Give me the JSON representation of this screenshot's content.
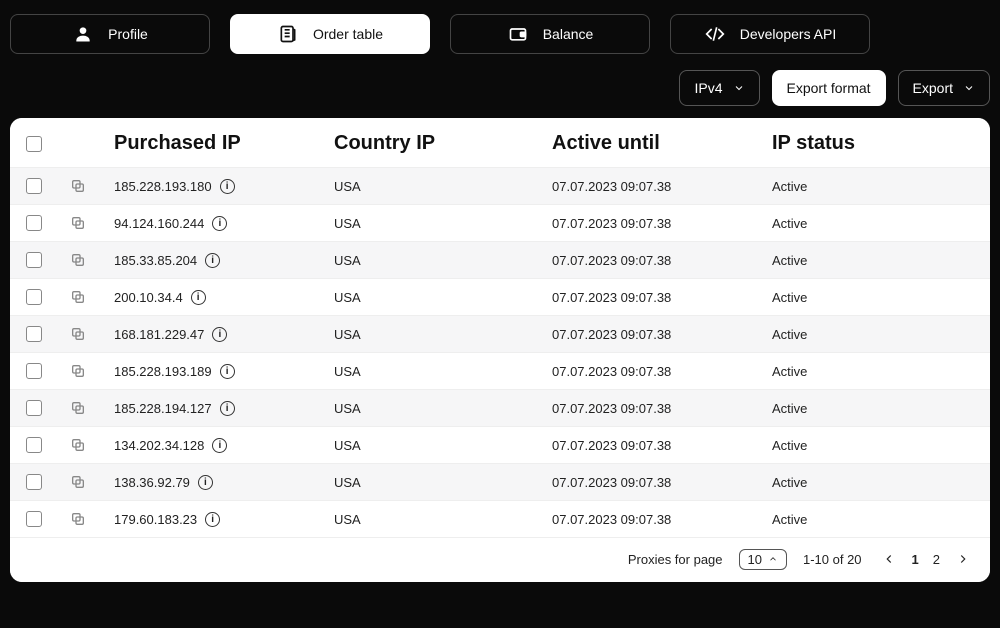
{
  "nav": {
    "profile": "Profile",
    "order_table": "Order table",
    "balance": "Balance",
    "developers_api": "Developers API",
    "active": "order_table"
  },
  "controls": {
    "ip_version": "IPv4",
    "export_format": "Export format",
    "export": "Export"
  },
  "table": {
    "columns": {
      "purchased_ip": "Purchased IP",
      "country_ip": "Country IP",
      "active_until": "Active until",
      "ip_status": "IP status"
    },
    "rows": [
      {
        "ip": "185.228.193.180",
        "country": "USA",
        "active_until": "07.07.2023 09:07.38",
        "status": "Active"
      },
      {
        "ip": "94.124.160.244",
        "country": "USA",
        "active_until": "07.07.2023 09:07.38",
        "status": "Active"
      },
      {
        "ip": "185.33.85.204",
        "country": "USA",
        "active_until": "07.07.2023 09:07.38",
        "status": "Active"
      },
      {
        "ip": "200.10.34.4",
        "country": "USA",
        "active_until": "07.07.2023 09:07.38",
        "status": "Active"
      },
      {
        "ip": "168.181.229.47",
        "country": "USA",
        "active_until": "07.07.2023 09:07.38",
        "status": "Active"
      },
      {
        "ip": "185.228.193.189",
        "country": "USA",
        "active_until": "07.07.2023 09:07.38",
        "status": "Active"
      },
      {
        "ip": "185.228.194.127",
        "country": "USA",
        "active_until": "07.07.2023 09:07.38",
        "status": "Active"
      },
      {
        "ip": "134.202.34.128",
        "country": "USA",
        "active_until": "07.07.2023 09:07.38",
        "status": "Active"
      },
      {
        "ip": "138.36.92.79",
        "country": "USA",
        "active_until": "07.07.2023 09:07.38",
        "status": "Active"
      },
      {
        "ip": "179.60.183.23",
        "country": "USA",
        "active_until": "07.07.2023 09:07.38",
        "status": "Active"
      }
    ]
  },
  "footer": {
    "label": "Proxies for page",
    "page_size": "10",
    "range": "1-10 of 20",
    "pages": [
      "1",
      "2"
    ],
    "current_page": "1"
  },
  "colors": {
    "bg": "#0a0a0a",
    "panel": "#ffffff",
    "row_alt": "#f6f6f7",
    "border": "#eeeeee",
    "text": "#111111",
    "muted": "#888888"
  }
}
